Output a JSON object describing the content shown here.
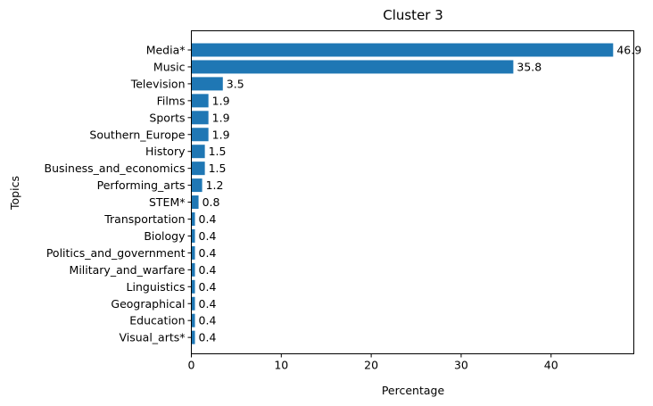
{
  "chart_data": {
    "type": "bar",
    "orientation": "horizontal",
    "title": "Cluster 3",
    "xlabel": "Percentage",
    "ylabel": "Topics",
    "categories": [
      "Media*",
      "Music",
      "Television",
      "Films",
      "Sports",
      "Southern_Europe",
      "History",
      "Business_and_economics",
      "Performing_arts",
      "STEM*",
      "Transportation",
      "Biology",
      "Politics_and_government",
      "Military_and_warfare",
      "Linguistics",
      "Geographical",
      "Education",
      "Visual_arts*"
    ],
    "values": [
      46.9,
      35.8,
      3.5,
      1.9,
      1.9,
      1.9,
      1.5,
      1.5,
      1.2,
      0.8,
      0.4,
      0.4,
      0.4,
      0.4,
      0.4,
      0.4,
      0.4,
      0.4
    ],
    "value_labels": [
      "46.9",
      "35.8",
      "3.5",
      "1.9",
      "1.9",
      "1.9",
      "1.5",
      "1.5",
      "1.2",
      "0.8",
      "0.4",
      "0.4",
      "0.4",
      "0.4",
      "0.4",
      "0.4",
      "0.4",
      "0.4"
    ],
    "xticks": [
      0,
      10,
      20,
      30,
      40
    ],
    "xlim": [
      0,
      49.2
    ],
    "grid": false,
    "legend": "none",
    "bar_color": "#1f77b4"
  }
}
